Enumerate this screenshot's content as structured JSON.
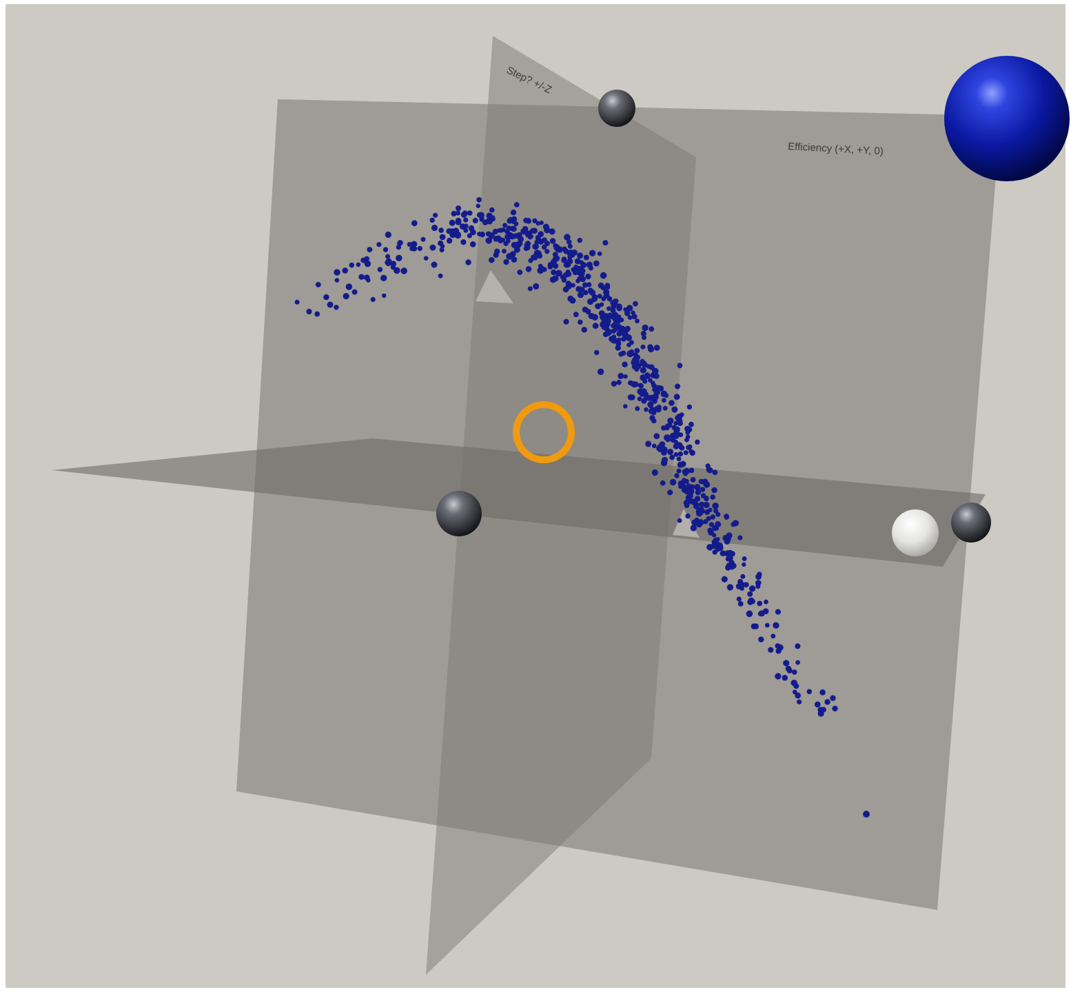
{
  "scene": {
    "background": "#cdcac3",
    "plane_color": "#7d7975",
    "labels": {
      "vertical_plane": "Step? +/-Z",
      "back_plane": "Efficiency (+X, +Y, 0)"
    },
    "spheres": {
      "large_color": "#0a1aa8",
      "handle_color": "#3a3c42",
      "cursor_color": "#e3e3e0"
    },
    "ring_color": "#f09a10",
    "point_color": "#141c8c"
  }
}
